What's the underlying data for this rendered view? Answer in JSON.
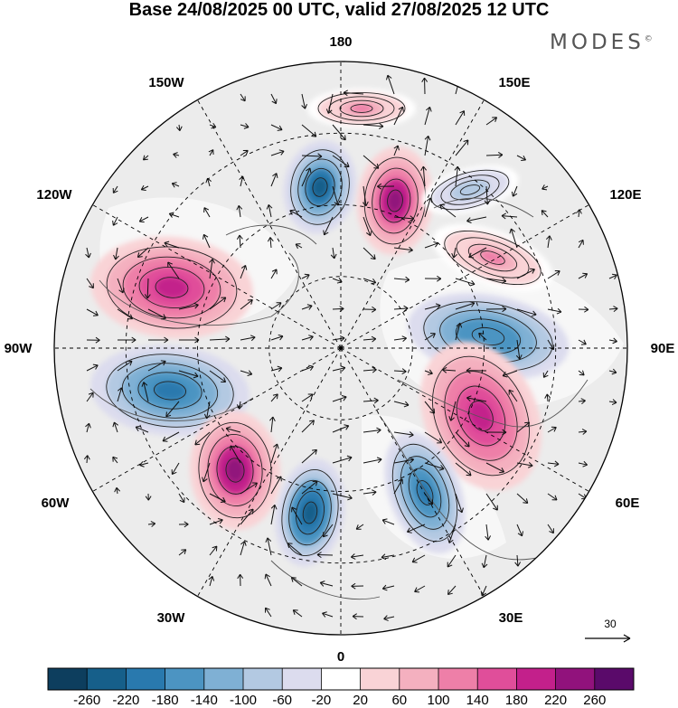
{
  "title": "Base 24/08/2025 00 UTC, valid 27/08/2025 12 UTC",
  "brand": "MODES",
  "brand_mark": "©",
  "map": {
    "projection": "north-polar-stereographic",
    "longitude_labels": [
      "180",
      "150E",
      "120E",
      "90E",
      "60E",
      "30E",
      "0",
      "30W",
      "60W",
      "90W",
      "120W",
      "150W"
    ],
    "reference_vector_value": "30"
  },
  "colorbar": {
    "tick_labels": [
      "-260",
      "-220",
      "-180",
      "-140",
      "-100",
      "-60",
      "-20",
      "20",
      "60",
      "100",
      "140",
      "180",
      "220",
      "260"
    ],
    "colors": [
      "#0d3e5e",
      "#165f8a",
      "#2979ae",
      "#4c94c2",
      "#7fb0d4",
      "#b3c9e2",
      "#dcdcee",
      "#ffffff",
      "#f9d3d6",
      "#f4b0bf",
      "#ee7fa8",
      "#e04e9a",
      "#c3208b",
      "#91127c",
      "#5a0a6a"
    ]
  },
  "anomalies": [
    {
      "id": "A1",
      "sign": "negative",
      "peak": -240
    },
    {
      "id": "A2",
      "sign": "positive",
      "peak": 230
    },
    {
      "id": "A3",
      "sign": "positive",
      "peak": 180
    },
    {
      "id": "A4",
      "sign": "negative",
      "peak": -180
    },
    {
      "id": "A5",
      "sign": "positive",
      "peak": 200
    },
    {
      "id": "A6",
      "sign": "negative",
      "peak": -200
    },
    {
      "id": "A7",
      "sign": "negative",
      "peak": -250
    },
    {
      "id": "A8",
      "sign": "positive",
      "peak": 240
    },
    {
      "id": "A9",
      "sign": "negative",
      "peak": -200
    },
    {
      "id": "A10",
      "sign": "positive",
      "peak": 100
    },
    {
      "id": "A11",
      "sign": "negative",
      "peak": -100
    },
    {
      "id": "A12",
      "sign": "positive",
      "peak": 100
    }
  ]
}
